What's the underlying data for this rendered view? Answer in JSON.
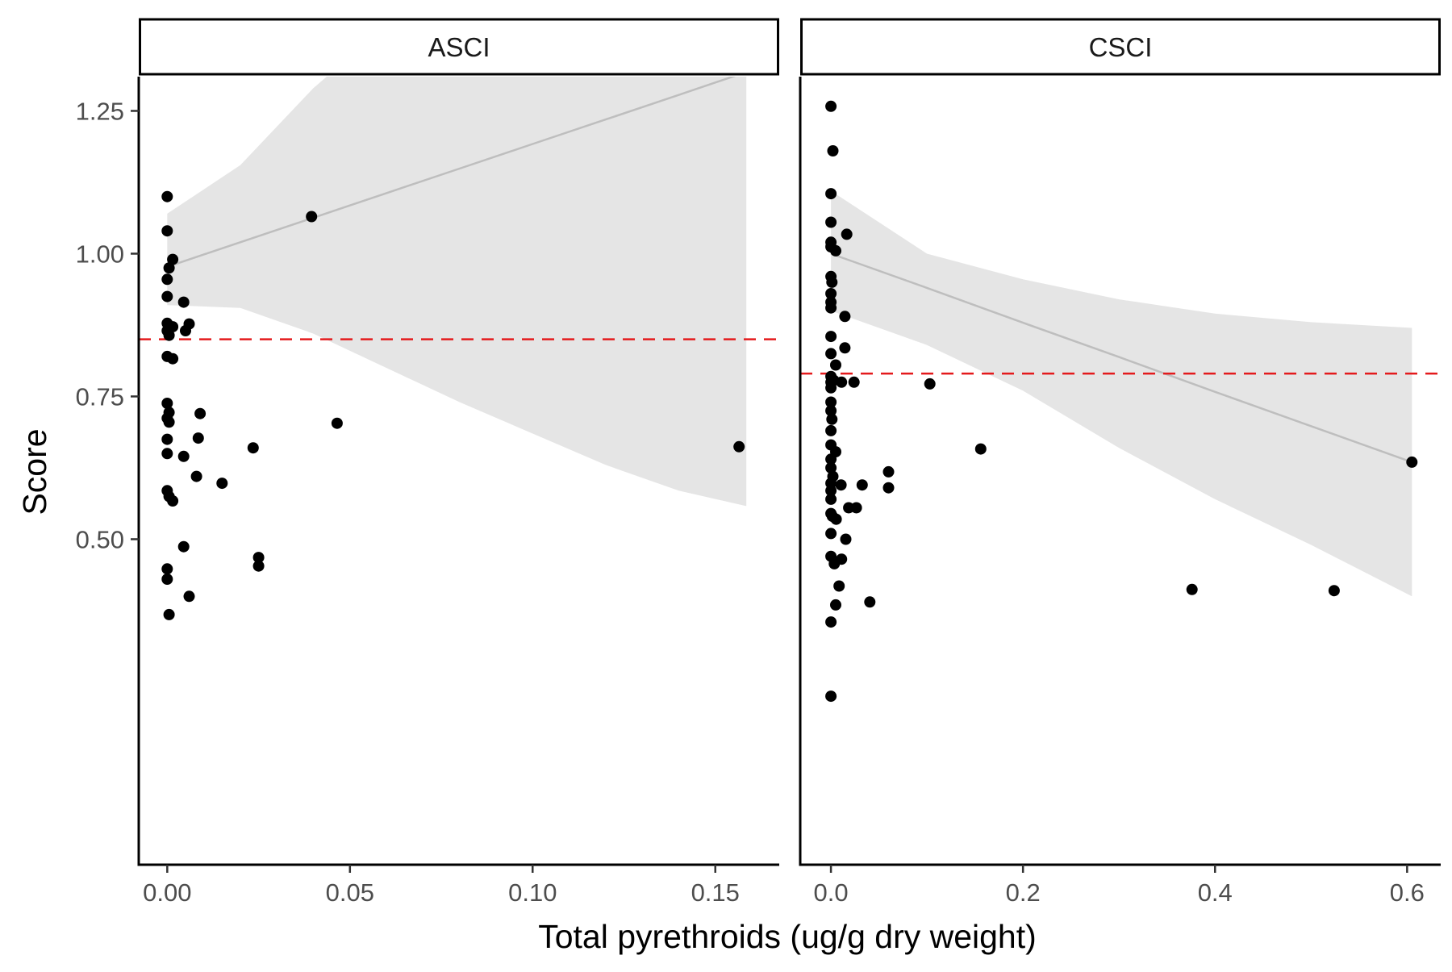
{
  "chart_data": {
    "type": "scatter",
    "title": "",
    "xlabel": "Total pyrethroids (ug/g dry weight)",
    "ylabel": "Score",
    "y_ticks": [
      0.5,
      0.75,
      1.0,
      1.25
    ],
    "y_tick_labels": [
      "0.50",
      "0.75",
      "1.00",
      "1.25"
    ],
    "ylim": [
      -0.07,
      1.31
    ],
    "colors": {
      "points": "#000000",
      "fit_line": "#bebebe",
      "ribbon": "#e5e5e5",
      "threshold": "#e41a1c"
    },
    "panels": [
      {
        "name": "ASCI",
        "xlim": [
          -0.0078,
          0.1675
        ],
        "x_ticks": [
          0.0,
          0.05,
          0.1,
          0.15
        ],
        "x_tick_labels": [
          "0.00",
          "0.05",
          "0.10",
          "0.15"
        ],
        "threshold": 0.85,
        "fit": {
          "x": [
            0.0,
            0.02,
            0.04,
            0.06,
            0.08,
            0.1,
            0.12,
            0.14,
            0.1585
          ],
          "y": [
            0.977,
            1.02,
            1.063,
            1.106,
            1.149,
            1.192,
            1.235,
            1.278,
            1.318
          ],
          "lower": [
            0.91,
            0.905,
            0.86,
            0.8,
            0.74,
            0.685,
            0.63,
            0.585,
            0.558
          ],
          "upper": [
            1.07,
            1.155,
            1.29,
            1.4,
            1.52,
            1.66,
            1.83,
            1.97,
            2.05
          ]
        },
        "points": [
          [
            0.0,
            1.1
          ],
          [
            0.0,
            1.04
          ],
          [
            0.0015,
            0.99
          ],
          [
            0.0005,
            0.975
          ],
          [
            0.0,
            0.955
          ],
          [
            0.0,
            0.925
          ],
          [
            0.0045,
            0.915
          ],
          [
            0.0,
            0.878
          ],
          [
            0.006,
            0.877
          ],
          [
            0.0015,
            0.872
          ],
          [
            0.0,
            0.865
          ],
          [
            0.005,
            0.865
          ],
          [
            0.0005,
            0.857
          ],
          [
            0.0,
            0.82
          ],
          [
            0.0015,
            0.816
          ],
          [
            0.0,
            0.738
          ],
          [
            0.0005,
            0.722
          ],
          [
            0.009,
            0.72
          ],
          [
            0.0,
            0.712
          ],
          [
            0.0005,
            0.705
          ],
          [
            0.0465,
            0.703
          ],
          [
            0.0,
            0.675
          ],
          [
            0.0085,
            0.677
          ],
          [
            0.0235,
            0.66
          ],
          [
            0.1565,
            0.662
          ],
          [
            0.0,
            0.65
          ],
          [
            0.0045,
            0.645
          ],
          [
            0.008,
            0.61
          ],
          [
            0.015,
            0.598
          ],
          [
            0.0,
            0.585
          ],
          [
            0.0005,
            0.575
          ],
          [
            0.0015,
            0.567
          ],
          [
            0.0045,
            0.487
          ],
          [
            0.025,
            0.468
          ],
          [
            0.025,
            0.453
          ],
          [
            0.0,
            0.448
          ],
          [
            0.0,
            0.43
          ],
          [
            0.006,
            0.4
          ],
          [
            0.0005,
            0.368
          ],
          [
            0.0395,
            1.065
          ]
        ]
      },
      {
        "name": "CSCI",
        "xlim": [
          -0.032,
          0.635
        ],
        "x_ticks": [
          0.0,
          0.2,
          0.4,
          0.6
        ],
        "x_tick_labels": [
          "0.0",
          "0.2",
          "0.4",
          "0.6"
        ],
        "threshold": 0.79,
        "fit": {
          "x": [
            0.0,
            0.1,
            0.2,
            0.3,
            0.4,
            0.5,
            0.605
          ],
          "y": [
            1.0,
            0.94,
            0.879,
            0.819,
            0.758,
            0.698,
            0.635
          ],
          "lower": [
            0.9,
            0.84,
            0.76,
            0.66,
            0.57,
            0.49,
            0.4
          ],
          "upper": [
            1.11,
            1.0,
            0.955,
            0.92,
            0.895,
            0.88,
            0.87
          ]
        },
        "points": [
          [
            0.0,
            1.258
          ],
          [
            0.002,
            1.18
          ],
          [
            0.0,
            1.105
          ],
          [
            0.0,
            1.055
          ],
          [
            0.0,
            1.02
          ],
          [
            0.0,
            1.012
          ],
          [
            0.005,
            1.005
          ],
          [
            0.0165,
            1.034
          ],
          [
            0.0,
            0.96
          ],
          [
            0.001,
            0.95
          ],
          [
            0.0,
            0.93
          ],
          [
            0.0,
            0.915
          ],
          [
            0.0,
            0.905
          ],
          [
            0.0145,
            0.89
          ],
          [
            0.0,
            0.855
          ],
          [
            0.0145,
            0.835
          ],
          [
            0.0,
            0.825
          ],
          [
            0.005,
            0.805
          ],
          [
            0.0,
            0.785
          ],
          [
            0.0,
            0.775
          ],
          [
            0.003,
            0.778
          ],
          [
            0.011,
            0.775
          ],
          [
            0.024,
            0.775
          ],
          [
            0.103,
            0.772
          ],
          [
            0.0,
            0.765
          ],
          [
            0.0,
            0.74
          ],
          [
            0.0,
            0.725
          ],
          [
            0.001,
            0.71
          ],
          [
            0.0,
            0.69
          ],
          [
            0.0,
            0.665
          ],
          [
            0.005,
            0.653
          ],
          [
            0.156,
            0.658
          ],
          [
            0.0,
            0.64
          ],
          [
            0.0,
            0.625
          ],
          [
            0.06,
            0.618
          ],
          [
            0.002,
            0.61
          ],
          [
            0.0,
            0.598
          ],
          [
            0.0105,
            0.595
          ],
          [
            0.0325,
            0.595
          ],
          [
            0.0,
            0.585
          ],
          [
            0.06,
            0.59
          ],
          [
            0.0,
            0.57
          ],
          [
            0.0185,
            0.555
          ],
          [
            0.0265,
            0.555
          ],
          [
            0.0,
            0.545
          ],
          [
            0.0015,
            0.54
          ],
          [
            0.0055,
            0.535
          ],
          [
            0.0,
            0.51
          ],
          [
            0.0155,
            0.5
          ],
          [
            0.0,
            0.47
          ],
          [
            0.011,
            0.465
          ],
          [
            0.0035,
            0.457
          ],
          [
            0.0085,
            0.418
          ],
          [
            0.376,
            0.412
          ],
          [
            0.0405,
            0.39
          ],
          [
            0.524,
            0.41
          ],
          [
            0.005,
            0.385
          ],
          [
            0.0,
            0.355
          ],
          [
            0.0,
            0.225
          ],
          [
            0.605,
            0.635
          ]
        ]
      }
    ]
  }
}
